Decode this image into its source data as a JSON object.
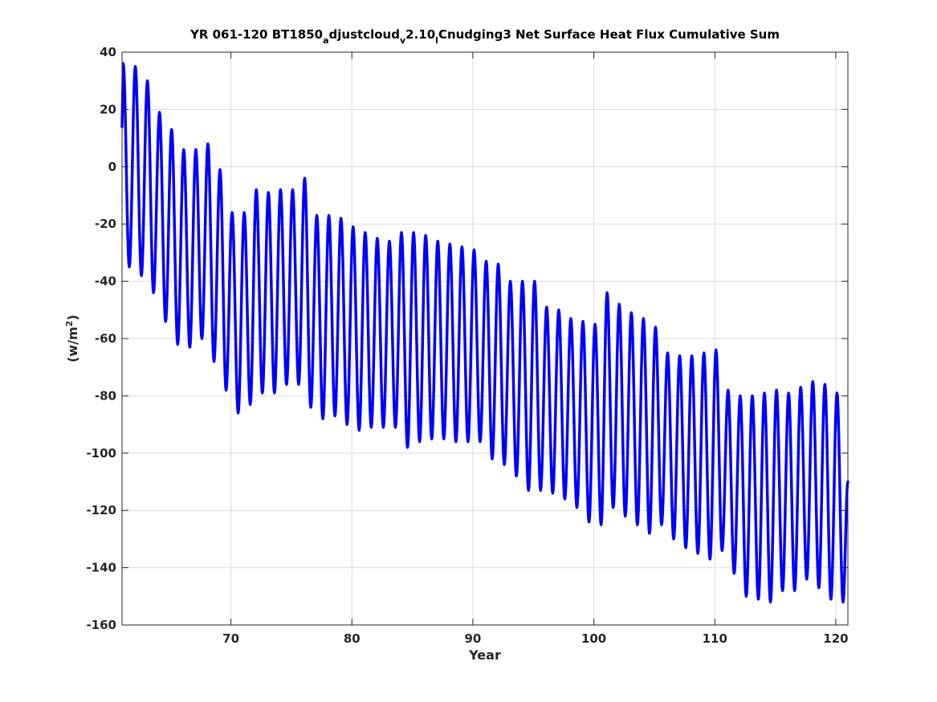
{
  "chart_data": {
    "type": "line",
    "title": {
      "prefix": "YR 061-120 BT1850",
      "sub1": "a",
      "mid1": "djustcloud",
      "sub2": "v",
      "mid2": "2.10",
      "sub3": "l",
      "suffix": "Cnudging3 Net Surface Heat Flux  Cumulative Sum"
    },
    "xlabel": "Year",
    "ylabel": {
      "base": "(w/m",
      "sup": "2",
      "close": ")"
    },
    "xlim": [
      61,
      121
    ],
    "ylim": [
      -160,
      40
    ],
    "xticks": [
      70,
      80,
      90,
      100,
      110,
      120
    ],
    "xtick_labels": [
      "70",
      "80",
      "90",
      "100",
      "110",
      "120"
    ],
    "yticks": [
      40,
      20,
      0,
      -20,
      -40,
      -60,
      -80,
      -100,
      -120,
      -140,
      -160
    ],
    "ytick_labels": [
      "40",
      "20",
      "0",
      "-20",
      "-40",
      "-60",
      "-80",
      "-100",
      "-120",
      "-140",
      "-160"
    ],
    "grid": true,
    "line_color": "#0000ff",
    "series": [
      {
        "x_start": 61.0,
        "samples_per_year": 12,
        "note_shape": "seasonal cycle, one peak per year",
        "peak_years": [
          61.1,
          62.1,
          63.1,
          64.1,
          65.1,
          66.1,
          67.1,
          68.1,
          69.1,
          70.1,
          71.1,
          72.1,
          73.1,
          74.1,
          75.1,
          76.1,
          77.1,
          78.1,
          79.1,
          80.1,
          81.1,
          82.1,
          83.1,
          84.1,
          85.1,
          86.1,
          87.1,
          88.1,
          89.1,
          90.1,
          91.1,
          92.1,
          93.1,
          94.1,
          95.1,
          96.1,
          97.1,
          98.1,
          99.1,
          100.1,
          101.1,
          102.1,
          103.1,
          104.1,
          105.1,
          106.1,
          107.1,
          108.1,
          109.1,
          110.1,
          111.1,
          112.1,
          113.1,
          114.1,
          115.1,
          116.1,
          117.1,
          118.1,
          119.1,
          120.1
        ],
        "peaks": [
          36,
          35,
          30,
          19,
          13,
          6,
          6,
          8,
          -1,
          -16,
          -16,
          -8,
          -9,
          -8,
          -8,
          -4,
          -17,
          -17,
          -18,
          -21,
          -23,
          -25,
          -26,
          -23,
          -23,
          -24,
          -26,
          -27,
          -28,
          -29,
          -33,
          -34,
          -40,
          -40,
          -40,
          -49,
          -50,
          -53,
          -54,
          -55,
          -44,
          -48,
          -51,
          -53,
          -56,
          -65,
          -66,
          -66,
          -65,
          -64,
          -78,
          -80,
          -80,
          -79,
          -78,
          -79,
          -77,
          -75,
          -76,
          -79
        ],
        "troughs": [
          -35,
          -38,
          -44,
          -54,
          -62,
          -63,
          -60,
          -68,
          -78,
          -86,
          -83,
          -79,
          -79,
          -76,
          -76,
          -84,
          -88,
          -87,
          -90,
          -92,
          -91,
          -91,
          -91,
          -98,
          -96,
          -95,
          -95,
          -96,
          -96,
          -96,
          -102,
          -104,
          -108,
          -113,
          -113,
          -114,
          -116,
          -119,
          -124,
          -125,
          -119,
          -122,
          -125,
          -128,
          -125,
          -130,
          -133,
          -135,
          -137,
          -134,
          -142,
          -150,
          -151,
          -152,
          -148,
          -148,
          -144,
          -147,
          -151,
          -152
        ],
        "end_value": -110
      }
    ]
  }
}
